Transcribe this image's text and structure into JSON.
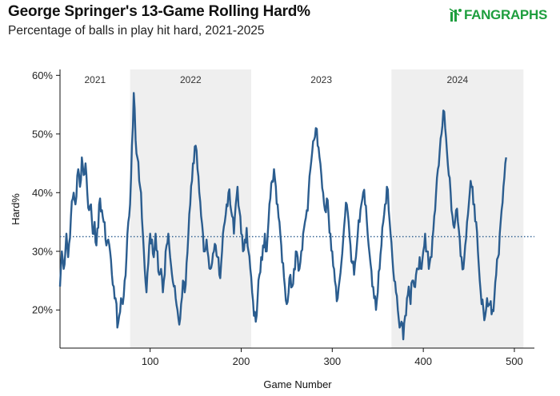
{
  "header": {
    "title": "George Springer's 13-Game Rolling Hard%",
    "subtitle": "Percentage of balls in play hit hard, 2021-2025",
    "logo_text": "FANGRAPHS"
  },
  "colors": {
    "line": "#2b5d8f",
    "shade": "#efefef",
    "logo": "#1e9e3e"
  },
  "chart_data": {
    "type": "line",
    "title": "George Springer's 13-Game Rolling Hard%",
    "subtitle": "Percentage of balls in play hit hard, 2021-2025",
    "xlabel": "Game Number",
    "ylabel": "Hard%",
    "xlim": [
      1,
      522
    ],
    "ylim": [
      13.5,
      61
    ],
    "x_ticks": [
      100,
      200,
      300,
      400,
      500
    ],
    "y_ticks": [
      20,
      30,
      40,
      50,
      60
    ],
    "y_tick_labels": [
      "20%",
      "30%",
      "40%",
      "50%",
      "60%"
    ],
    "grid": false,
    "reference_line": {
      "y": 32.5,
      "style": "dotted"
    },
    "seasons": [
      {
        "label": "2021",
        "start": 1,
        "end": 78,
        "shaded": false
      },
      {
        "label": "2022",
        "start": 78,
        "end": 211,
        "shaded": true
      },
      {
        "label": "2023",
        "start": 211,
        "end": 365,
        "shaded": false
      },
      {
        "label": "2024",
        "start": 365,
        "end": 510,
        "shaded": true
      }
    ],
    "series": [
      {
        "name": "13-Game Rolling Hard%",
        "anchors": [
          [
            1,
            24
          ],
          [
            3,
            30
          ],
          [
            5,
            27
          ],
          [
            8,
            33
          ],
          [
            10,
            29
          ],
          [
            13,
            36
          ],
          [
            16,
            40
          ],
          [
            18,
            38
          ],
          [
            21,
            44
          ],
          [
            23,
            41
          ],
          [
            25,
            46
          ],
          [
            27,
            43
          ],
          [
            29,
            45
          ],
          [
            31,
            40
          ],
          [
            33,
            37
          ],
          [
            35,
            38
          ],
          [
            37,
            33
          ],
          [
            39,
            35
          ],
          [
            41,
            31
          ],
          [
            43,
            34
          ],
          [
            45,
            39
          ],
          [
            47,
            37
          ],
          [
            49,
            35
          ],
          [
            51,
            32
          ],
          [
            54,
            32
          ],
          [
            56,
            30
          ],
          [
            58,
            26
          ],
          [
            60,
            24
          ],
          [
            62,
            22
          ],
          [
            64,
            17
          ],
          [
            66,
            19
          ],
          [
            68,
            22
          ],
          [
            70,
            21
          ],
          [
            72,
            25
          ],
          [
            74,
            29
          ],
          [
            76,
            35
          ],
          [
            78,
            38
          ],
          [
            80,
            48
          ],
          [
            82,
            57
          ],
          [
            84,
            49
          ],
          [
            86,
            46
          ],
          [
            88,
            42
          ],
          [
            90,
            40
          ],
          [
            92,
            33
          ],
          [
            94,
            27
          ],
          [
            96,
            23
          ],
          [
            98,
            28
          ],
          [
            100,
            33
          ],
          [
            102,
            32
          ],
          [
            104,
            29
          ],
          [
            106,
            33
          ],
          [
            108,
            30
          ],
          [
            110,
            26
          ],
          [
            112,
            27
          ],
          [
            114,
            23
          ],
          [
            116,
            26
          ],
          [
            118,
            31
          ],
          [
            120,
            33
          ],
          [
            122,
            29
          ],
          [
            124,
            26
          ],
          [
            126,
            24
          ],
          [
            128,
            22
          ],
          [
            130,
            20
          ],
          [
            132,
            17.5
          ],
          [
            134,
            21
          ],
          [
            136,
            25
          ],
          [
            138,
            23
          ],
          [
            140,
            28
          ],
          [
            142,
            33
          ],
          [
            144,
            38
          ],
          [
            146,
            42
          ],
          [
            148,
            45
          ],
          [
            150,
            48
          ],
          [
            152,
            44
          ],
          [
            154,
            40
          ],
          [
            156,
            36
          ],
          [
            158,
            33
          ],
          [
            160,
            30
          ],
          [
            162,
            32
          ],
          [
            164,
            29
          ],
          [
            166,
            27
          ],
          [
            168,
            28
          ],
          [
            170,
            30
          ],
          [
            172,
            31
          ],
          [
            174,
            29
          ],
          [
            176,
            26
          ],
          [
            178,
            28
          ],
          [
            180,
            33
          ],
          [
            182,
            35
          ],
          [
            184,
            38
          ],
          [
            186,
            40
          ],
          [
            188,
            38
          ],
          [
            190,
            36
          ],
          [
            192,
            33
          ],
          [
            194,
            38
          ],
          [
            196,
            41
          ],
          [
            198,
            37
          ],
          [
            200,
            33
          ],
          [
            202,
            30
          ],
          [
            204,
            32
          ],
          [
            206,
            34
          ],
          [
            208,
            30
          ],
          [
            210,
            27
          ],
          [
            212,
            23
          ],
          [
            214,
            19
          ],
          [
            216,
            18
          ],
          [
            218,
            22
          ],
          [
            220,
            26
          ],
          [
            222,
            29
          ],
          [
            224,
            31
          ],
          [
            226,
            33
          ],
          [
            228,
            30
          ],
          [
            230,
            35
          ],
          [
            232,
            39
          ],
          [
            234,
            42
          ],
          [
            236,
            44
          ],
          [
            238,
            41
          ],
          [
            240,
            38
          ],
          [
            242,
            35
          ],
          [
            244,
            31
          ],
          [
            246,
            28
          ],
          [
            248,
            24
          ],
          [
            250,
            21
          ],
          [
            252,
            23
          ],
          [
            254,
            26
          ],
          [
            256,
            24
          ],
          [
            258,
            27
          ],
          [
            260,
            30
          ],
          [
            262,
            29
          ],
          [
            264,
            27
          ],
          [
            266,
            30
          ],
          [
            268,
            33
          ],
          [
            270,
            35
          ],
          [
            272,
            37
          ],
          [
            274,
            40
          ],
          [
            276,
            44
          ],
          [
            278,
            47
          ],
          [
            280,
            49
          ],
          [
            282,
            51
          ],
          [
            284,
            48
          ],
          [
            286,
            46
          ],
          [
            288,
            43
          ],
          [
            290,
            40
          ],
          [
            292,
            37
          ],
          [
            294,
            39
          ],
          [
            296,
            36
          ],
          [
            298,
            33
          ],
          [
            300,
            30
          ],
          [
            302,
            27
          ],
          [
            304,
            24
          ],
          [
            306,
            22
          ],
          [
            308,
            25
          ],
          [
            310,
            28
          ],
          [
            312,
            32
          ],
          [
            314,
            36
          ],
          [
            316,
            38
          ],
          [
            318,
            35
          ],
          [
            320,
            31
          ],
          [
            322,
            28
          ],
          [
            324,
            26
          ],
          [
            326,
            29
          ],
          [
            328,
            33
          ],
          [
            330,
            35
          ],
          [
            332,
            38
          ],
          [
            334,
            40
          ],
          [
            336,
            38
          ],
          [
            338,
            35
          ],
          [
            340,
            31
          ],
          [
            342,
            28
          ],
          [
            344,
            24
          ],
          [
            346,
            22
          ],
          [
            348,
            20
          ],
          [
            350,
            23
          ],
          [
            352,
            27
          ],
          [
            354,
            31
          ],
          [
            356,
            35
          ],
          [
            358,
            38
          ],
          [
            360,
            41
          ],
          [
            362,
            37
          ],
          [
            364,
            33
          ],
          [
            366,
            29
          ],
          [
            368,
            25
          ],
          [
            370,
            23
          ],
          [
            372,
            20
          ],
          [
            374,
            17
          ],
          [
            376,
            18
          ],
          [
            378,
            15
          ],
          [
            380,
            19
          ],
          [
            382,
            22
          ],
          [
            384,
            24
          ],
          [
            386,
            21
          ],
          [
            388,
            25
          ],
          [
            390,
            24
          ],
          [
            392,
            26
          ],
          [
            394,
            27
          ],
          [
            396,
            29
          ],
          [
            398,
            27
          ],
          [
            400,
            30
          ],
          [
            402,
            33
          ],
          [
            404,
            30
          ],
          [
            406,
            27
          ],
          [
            408,
            29
          ],
          [
            410,
            32
          ],
          [
            412,
            36
          ],
          [
            414,
            40
          ],
          [
            416,
            44
          ],
          [
            418,
            47
          ],
          [
            420,
            50
          ],
          [
            422,
            54
          ],
          [
            424,
            51
          ],
          [
            426,
            47
          ],
          [
            428,
            43
          ],
          [
            430,
            40
          ],
          [
            432,
            36
          ],
          [
            434,
            34
          ],
          [
            436,
            37
          ],
          [
            438,
            35
          ],
          [
            440,
            32
          ],
          [
            442,
            29
          ],
          [
            444,
            27
          ],
          [
            446,
            31
          ],
          [
            448,
            35
          ],
          [
            450,
            38
          ],
          [
            452,
            42
          ],
          [
            454,
            41
          ],
          [
            456,
            38
          ],
          [
            458,
            35
          ],
          [
            460,
            30
          ],
          [
            462,
            25
          ],
          [
            464,
            21
          ],
          [
            466,
            20
          ],
          [
            468,
            19
          ],
          [
            470,
            22
          ],
          [
            472,
            21
          ],
          [
            474,
            21.5
          ],
          [
            476,
            20
          ],
          [
            478,
            22
          ],
          [
            480,
            26
          ],
          [
            482,
            29
          ],
          [
            484,
            33
          ],
          [
            486,
            37
          ],
          [
            488,
            41
          ],
          [
            490,
            45
          ],
          [
            491,
            46
          ]
        ]
      }
    ]
  }
}
